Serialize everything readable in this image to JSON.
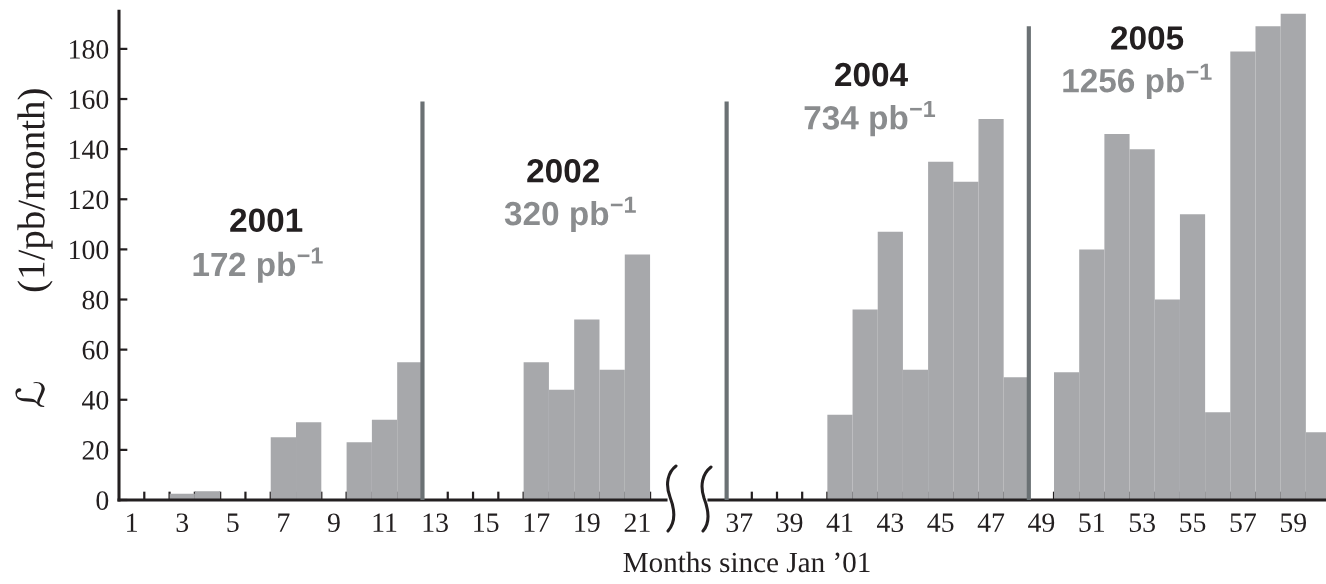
{
  "chart_data": [
    {
      "type": "bar",
      "xlabel": "Months since Jan ’01",
      "ylabel": "ℒ         (1/pb/month)",
      "xlim": [
        0.5,
        22.13
      ],
      "ylim": [
        0,
        195
      ],
      "xticks": [
        1,
        {
          "value": 1.5,
          "label": null
        },
        {
          "value": 2.5,
          "label": null
        },
        3,
        {
          "value": 3.5,
          "label": null
        },
        {
          "value": 4.5,
          "label": null
        },
        5,
        {
          "value": 5.5,
          "label": null
        },
        {
          "value": 6.5,
          "label": null
        },
        7,
        {
          "value": 7.5,
          "label": null
        },
        {
          "value": 8.5,
          "label": null
        },
        9,
        {
          "value": 9.5,
          "label": null
        },
        {
          "value": 10.5,
          "label": null
        },
        11,
        {
          "value": 11.5,
          "label": null
        },
        13,
        {
          "value": 13.5,
          "label": null
        },
        {
          "value": 14.5,
          "label": null
        },
        15,
        {
          "value": 15.5,
          "label": null
        },
        {
          "value": 16.5,
          "label": null
        },
        17,
        {
          "value": 17.5,
          "label": null
        },
        {
          "value": 18.5,
          "label": null
        },
        19,
        {
          "value": 19.5,
          "label": null
        },
        {
          "value": 20.5,
          "label": null
        },
        21,
        {
          "value": 21.5,
          "label": null
        }
      ],
      "yticks": [
        0,
        20,
        40,
        60,
        80,
        100,
        120,
        140,
        160,
        180
      ],
      "annotations": [
        "2001",
        "172 pb$^{−1}$",
        "2002",
        "320 pb$^{−1}$"
      ],
      "series": [
        {
          "color": "#a7a8ab",
          "x": [
            3,
            4,
            7,
            8,
            10,
            11,
            12,
            17,
            18,
            19,
            20,
            21
          ],
          "values": [
            2.5,
            3.5,
            25,
            31,
            23,
            32,
            55,
            55,
            44,
            72,
            52,
            98
          ]
        },
        {
          "type": "line",
          "color": "#6b7174",
          "x": [
            12.5,
            12.5
          ],
          "values": [
            0,
            159
          ]
        }
      ]
    },
    {
      "type": "bar",
      "xlim": [
        35.8,
        60.3
      ],
      "ylim": [
        0,
        195
      ],
      "tick_labels": "x",
      "xticks": [
        37,
        {
          "value": 37.5,
          "label": null
        },
        {
          "value": 38.5,
          "label": null
        },
        39,
        {
          "value": 39.5,
          "label": null
        },
        {
          "value": 40.5,
          "label": null
        },
        41,
        {
          "value": 41.5,
          "label": null
        },
        {
          "value": 42.5,
          "label": null
        },
        43,
        {
          "value": 43.5,
          "label": null
        },
        {
          "value": 44.5,
          "label": null
        },
        45,
        {
          "value": 45.5,
          "label": null
        },
        {
          "value": 46.5,
          "label": null
        },
        47,
        {
          "value": 47.5,
          "label": null
        },
        49,
        {
          "value": 49.5,
          "label": null
        },
        {
          "value": 50.5,
          "label": null
        },
        51,
        {
          "value": 51.5,
          "label": null
        },
        {
          "value": 52.5,
          "label": null
        },
        53,
        {
          "value": 53.5,
          "label": null
        },
        {
          "value": 54.5,
          "label": null
        },
        55,
        {
          "value": 55.5,
          "label": null
        },
        {
          "value": 56.5,
          "label": null
        },
        57,
        {
          "value": 57.5,
          "label": null
        },
        {
          "value": 58.5,
          "label": null
        },
        59,
        {
          "value": 59.5,
          "label": null
        }
      ],
      "annotations": [
        "2004",
        "734 pb$^{−1}$",
        "2005",
        "1256 pb$^{−1}$"
      ],
      "series": [
        {
          "color": "#a7a8ab",
          "x": [
            41,
            42,
            43,
            44,
            45,
            46,
            47,
            48,
            50,
            51,
            52,
            53,
            54,
            55,
            56,
            57,
            58,
            59,
            60
          ],
          "values": [
            34,
            76,
            107,
            52,
            135,
            127,
            152,
            49,
            51,
            100,
            146,
            140,
            80,
            114,
            35,
            179,
            189,
            194,
            27
          ]
        },
        {
          "type": "line",
          "color": "#6b7174",
          "x": [
            36.5,
            36.5
          ],
          "values": [
            0,
            159
          ]
        },
        {
          "type": "line",
          "color": "#6b7174",
          "x": [
            48.5,
            48.5
          ],
          "values": [
            0,
            189
          ]
        }
      ]
    }
  ]
}
